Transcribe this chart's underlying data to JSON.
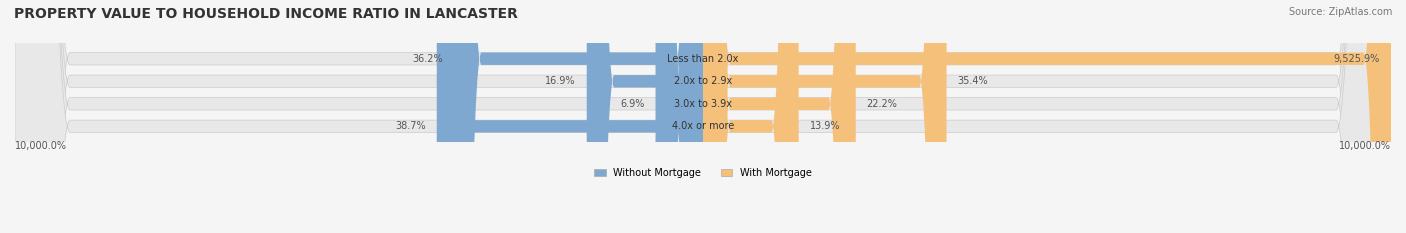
{
  "title": "PROPERTY VALUE TO HOUSEHOLD INCOME RATIO IN LANCASTER",
  "source": "Source: ZipAtlas.com",
  "categories": [
    "Less than 2.0x",
    "2.0x to 2.9x",
    "3.0x to 3.9x",
    "4.0x or more"
  ],
  "without_mortgage": [
    36.2,
    16.9,
    6.9,
    38.7
  ],
  "with_mortgage": [
    9525.9,
    35.4,
    22.2,
    13.9
  ],
  "without_mortgage_color": "#7fa8d0",
  "with_mortgage_color": "#f5c07a",
  "bar_bg_color": "#eeeeee",
  "bar_height": 0.55,
  "xlim": [
    0,
    10000
  ],
  "xlabel_left": "10,000.0%",
  "xlabel_right": "10,000.0%",
  "legend_labels": [
    "Without Mortgage",
    "With Mortgage"
  ],
  "title_fontsize": 10,
  "source_fontsize": 7,
  "tick_fontsize": 7,
  "label_fontsize": 7,
  "background_color": "#f5f5f5"
}
